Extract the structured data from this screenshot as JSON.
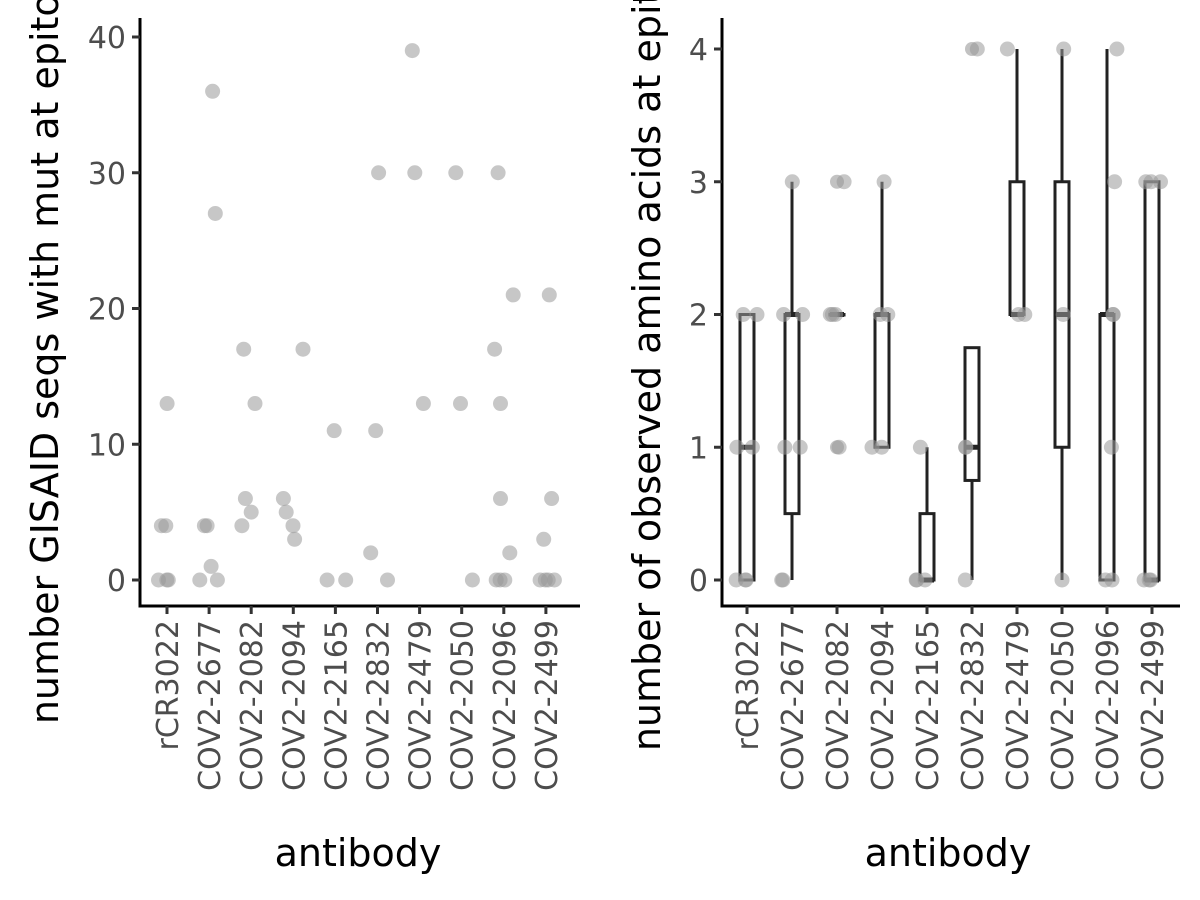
{
  "chart_data": [
    {
      "type": "scatter",
      "title": "",
      "xlabel": "antibody",
      "ylabel": "number GISAID seqs with mut at epitope",
      "ylim": [
        0,
        40
      ],
      "yticks": [
        0,
        10,
        20,
        30,
        40
      ],
      "grid": false,
      "point_color": "#999999",
      "categories": [
        "rCR3022",
        "COV2-2677",
        "COV2-2082",
        "COV2-2094",
        "COV2-2165",
        "COV2-2832",
        "COV2-2479",
        "COV2-2050",
        "COV2-2096",
        "COV2-2499"
      ],
      "points": [
        {
          "x": "rCR3022",
          "y": 0
        },
        {
          "x": "rCR3022",
          "y": 0
        },
        {
          "x": "rCR3022",
          "y": 0
        },
        {
          "x": "rCR3022",
          "y": 4
        },
        {
          "x": "rCR3022",
          "y": 4
        },
        {
          "x": "rCR3022",
          "y": 13
        },
        {
          "x": "COV2-2677",
          "y": 0
        },
        {
          "x": "COV2-2677",
          "y": 0
        },
        {
          "x": "COV2-2677",
          "y": 1
        },
        {
          "x": "COV2-2677",
          "y": 4
        },
        {
          "x": "COV2-2677",
          "y": 4
        },
        {
          "x": "COV2-2677",
          "y": 27
        },
        {
          "x": "COV2-2677",
          "y": 36
        },
        {
          "x": "COV2-2082",
          "y": 4
        },
        {
          "x": "COV2-2082",
          "y": 5
        },
        {
          "x": "COV2-2082",
          "y": 6
        },
        {
          "x": "COV2-2082",
          "y": 13
        },
        {
          "x": "COV2-2082",
          "y": 17
        },
        {
          "x": "COV2-2094",
          "y": 3
        },
        {
          "x": "COV2-2094",
          "y": 4
        },
        {
          "x": "COV2-2094",
          "y": 5
        },
        {
          "x": "COV2-2094",
          "y": 6
        },
        {
          "x": "COV2-2094",
          "y": 17
        },
        {
          "x": "COV2-2165",
          "y": 0
        },
        {
          "x": "COV2-2165",
          "y": 0
        },
        {
          "x": "COV2-2165",
          "y": 11
        },
        {
          "x": "COV2-2832",
          "y": 0
        },
        {
          "x": "COV2-2832",
          "y": 2
        },
        {
          "x": "COV2-2832",
          "y": 11
        },
        {
          "x": "COV2-2832",
          "y": 30
        },
        {
          "x": "COV2-2479",
          "y": 13
        },
        {
          "x": "COV2-2479",
          "y": 30
        },
        {
          "x": "COV2-2479",
          "y": 39
        },
        {
          "x": "COV2-2050",
          "y": 0
        },
        {
          "x": "COV2-2050",
          "y": 13
        },
        {
          "x": "COV2-2050",
          "y": 30
        },
        {
          "x": "COV2-2096",
          "y": 0
        },
        {
          "x": "COV2-2096",
          "y": 0
        },
        {
          "x": "COV2-2096",
          "y": 0
        },
        {
          "x": "COV2-2096",
          "y": 2
        },
        {
          "x": "COV2-2096",
          "y": 6
        },
        {
          "x": "COV2-2096",
          "y": 13
        },
        {
          "x": "COV2-2096",
          "y": 17
        },
        {
          "x": "COV2-2096",
          "y": 21
        },
        {
          "x": "COV2-2096",
          "y": 30
        },
        {
          "x": "COV2-2499",
          "y": 0
        },
        {
          "x": "COV2-2499",
          "y": 0
        },
        {
          "x": "COV2-2499",
          "y": 0
        },
        {
          "x": "COV2-2499",
          "y": 0
        },
        {
          "x": "COV2-2499",
          "y": 3
        },
        {
          "x": "COV2-2499",
          "y": 6
        },
        {
          "x": "COV2-2499",
          "y": 21
        }
      ]
    },
    {
      "type": "box",
      "title": "",
      "xlabel": "antibody",
      "ylabel": "number of observed amino acids at epitope",
      "ylim": [
        0,
        4
      ],
      "yticks": [
        0,
        1,
        2,
        3,
        4
      ],
      "grid": false,
      "point_color": "#999999",
      "box_color": "#222222",
      "categories": [
        "rCR3022",
        "COV2-2677",
        "COV2-2082",
        "COV2-2094",
        "COV2-2165",
        "COV2-2832",
        "COV2-2479",
        "COV2-2050",
        "COV2-2096",
        "COV2-2499"
      ],
      "boxes": [
        {
          "x": "rCR3022",
          "min": 0,
          "q1": 0,
          "median": 1,
          "q3": 2,
          "max": 2
        },
        {
          "x": "COV2-2677",
          "min": 0,
          "q1": 0.5,
          "median": 2,
          "q3": 2,
          "max": 3
        },
        {
          "x": "COV2-2082",
          "min": 2,
          "q1": 2,
          "median": 2,
          "q3": 2,
          "max": 2
        },
        {
          "x": "COV2-2094",
          "min": 1,
          "q1": 1,
          "median": 2,
          "q3": 2,
          "max": 3
        },
        {
          "x": "COV2-2165",
          "min": 0,
          "q1": 0,
          "median": 0,
          "q3": 0.5,
          "max": 1
        },
        {
          "x": "COV2-2832",
          "min": 0,
          "q1": 0.75,
          "median": 1,
          "q3": 1.75,
          "max": 1.75
        },
        {
          "x": "COV2-2479",
          "min": 2,
          "q1": 2,
          "median": 2,
          "q3": 3,
          "max": 4
        },
        {
          "x": "COV2-2050",
          "min": 0,
          "q1": 1,
          "median": 2,
          "q3": 3,
          "max": 4
        },
        {
          "x": "COV2-2096",
          "min": 0,
          "q1": 0,
          "median": 2,
          "q3": 2,
          "max": 4
        },
        {
          "x": "COV2-2499",
          "min": 0,
          "q1": 0,
          "median": 0,
          "q3": 3,
          "max": 3
        }
      ],
      "outliers": [
        {
          "x": "COV2-2082",
          "y": 1
        },
        {
          "x": "COV2-2082",
          "y": 3
        },
        {
          "x": "COV2-2832",
          "y": 4
        }
      ],
      "points": [
        {
          "x": "rCR3022",
          "y": 0
        },
        {
          "x": "rCR3022",
          "y": 0
        },
        {
          "x": "rCR3022",
          "y": 0
        },
        {
          "x": "rCR3022",
          "y": 1
        },
        {
          "x": "rCR3022",
          "y": 1
        },
        {
          "x": "rCR3022",
          "y": 2
        },
        {
          "x": "rCR3022",
          "y": 2
        },
        {
          "x": "COV2-2677",
          "y": 0
        },
        {
          "x": "COV2-2677",
          "y": 0
        },
        {
          "x": "COV2-2677",
          "y": 1
        },
        {
          "x": "COV2-2677",
          "y": 1
        },
        {
          "x": "COV2-2677",
          "y": 2
        },
        {
          "x": "COV2-2677",
          "y": 2
        },
        {
          "x": "COV2-2677",
          "y": 3
        },
        {
          "x": "COV2-2082",
          "y": 1
        },
        {
          "x": "COV2-2082",
          "y": 2
        },
        {
          "x": "COV2-2082",
          "y": 2
        },
        {
          "x": "COV2-2082",
          "y": 2
        },
        {
          "x": "COV2-2082",
          "y": 3
        },
        {
          "x": "COV2-2094",
          "y": 1
        },
        {
          "x": "COV2-2094",
          "y": 1
        },
        {
          "x": "COV2-2094",
          "y": 2
        },
        {
          "x": "COV2-2094",
          "y": 2
        },
        {
          "x": "COV2-2094",
          "y": 3
        },
        {
          "x": "COV2-2165",
          "y": 0
        },
        {
          "x": "COV2-2165",
          "y": 0
        },
        {
          "x": "COV2-2165",
          "y": 0
        },
        {
          "x": "COV2-2165",
          "y": 1
        },
        {
          "x": "COV2-2832",
          "y": 0
        },
        {
          "x": "COV2-2832",
          "y": 1
        },
        {
          "x": "COV2-2832",
          "y": 1
        },
        {
          "x": "COV2-2832",
          "y": 4
        },
        {
          "x": "COV2-2479",
          "y": 2
        },
        {
          "x": "COV2-2479",
          "y": 2
        },
        {
          "x": "COV2-2479",
          "y": 4
        },
        {
          "x": "COV2-2050",
          "y": 0
        },
        {
          "x": "COV2-2050",
          "y": 2
        },
        {
          "x": "COV2-2050",
          "y": 4
        },
        {
          "x": "COV2-2096",
          "y": 0
        },
        {
          "x": "COV2-2096",
          "y": 0
        },
        {
          "x": "COV2-2096",
          "y": 1
        },
        {
          "x": "COV2-2096",
          "y": 2
        },
        {
          "x": "COV2-2096",
          "y": 2
        },
        {
          "x": "COV2-2096",
          "y": 3
        },
        {
          "x": "COV2-2096",
          "y": 4
        },
        {
          "x": "COV2-2499",
          "y": 0
        },
        {
          "x": "COV2-2499",
          "y": 0
        },
        {
          "x": "COV2-2499",
          "y": 0
        },
        {
          "x": "COV2-2499",
          "y": 3
        },
        {
          "x": "COV2-2499",
          "y": 3
        },
        {
          "x": "COV2-2499",
          "y": 3
        }
      ]
    }
  ]
}
